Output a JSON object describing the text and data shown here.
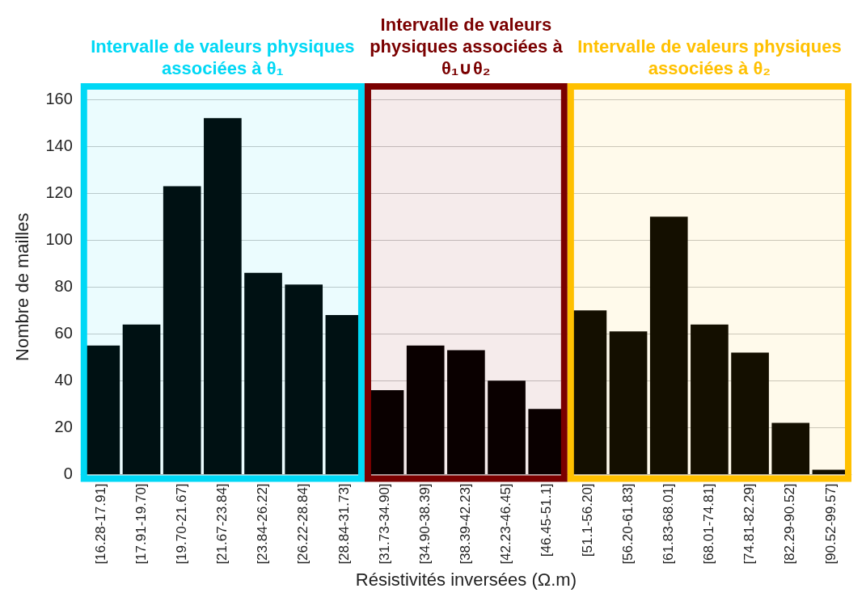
{
  "chart_data": {
    "type": "bar",
    "xlabel": "Résistivités inversées (Ω.m)",
    "ylabel": "Nombre de mailles",
    "categories": [
      "[16.28-17.91]",
      "[17.91-19.70]",
      "[19.70-21.67]",
      "[21.67-23.84]",
      "[23.84-26.22]",
      "[26.22-28.84]",
      "[28.84-31.73]",
      "[31.73-34.90]",
      "[34.90-38.39]",
      "[38.39-42.23]",
      "[42.23-46.45]",
      "[46.45-51.1]",
      "[51.1-56.20]",
      "[56.20-61.83]",
      "[61.83-68.01]",
      "[68.01-74.81]",
      "[74.81-82.29]",
      "[82.29-90.52]",
      "[90.52-99.57]"
    ],
    "values": [
      55,
      64,
      123,
      152,
      86,
      81,
      68,
      36,
      55,
      53,
      40,
      28,
      70,
      61,
      110,
      64,
      52,
      22,
      2
    ],
    "color": "#000000",
    "ylim": [
      0,
      160
    ],
    "yticks": [
      0,
      20,
      40,
      60,
      80,
      100,
      120,
      140,
      160
    ],
    "grid": "y",
    "legend": false,
    "bands": [
      {
        "axis": "x",
        "from": "[16.28-17.91]",
        "to": "[28.84-31.73]",
        "label": "Intervalle de valeurs physiques associées à θ₁",
        "color": "#00d8f5"
      },
      {
        "axis": "x",
        "from": "[31.73-34.90]",
        "to": "[46.45-51.1]",
        "label": "Intervalle de valeurs physiques associées à θ₁∪θ₂",
        "color": "#7a0000"
      },
      {
        "axis": "x",
        "from": "[51.1-56.20]",
        "to": "[90.52-99.57]",
        "label": "Intervalle de valeurs physiques associées à θ₂",
        "color": "#ffc000"
      }
    ]
  }
}
